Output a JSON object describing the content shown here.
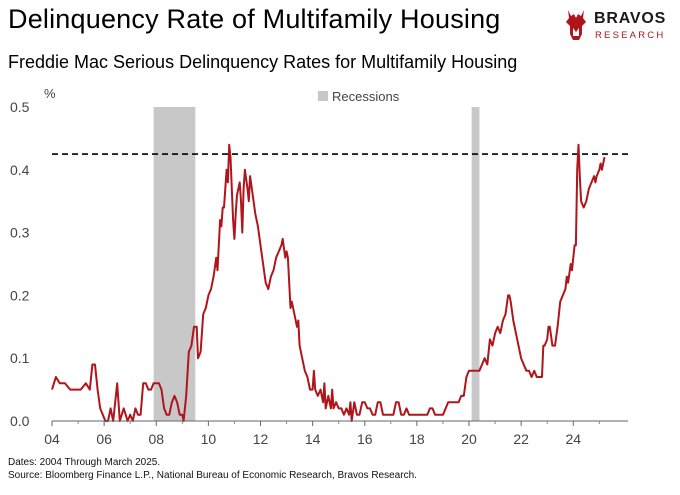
{
  "header": {
    "title": "Delinquency Rate of Multifamily Housing",
    "subtitle": "Freddie Mac Serious Delinquency Rates for Multifamily Housing"
  },
  "logo": {
    "name": "BRAVOS",
    "tagline": "RESEARCH",
    "icon": "bull-icon",
    "accent_color": "#b0151c"
  },
  "footer": {
    "dates_note": "Dates: 2004 Through March 2025.",
    "source_note": "Source: Bloomberg Finance L.P., National Bureau of Economic Research, Bravos Research."
  },
  "chart_data": {
    "type": "line",
    "title": "",
    "xlabel": "",
    "ylabel": "%",
    "xlim": [
      2004,
      2026.1
    ],
    "ylim": [
      0,
      0.5
    ],
    "x_ticks": [
      2004,
      2006,
      2008,
      2010,
      2012,
      2014,
      2016,
      2018,
      2020,
      2022,
      2024
    ],
    "x_tick_labels": [
      "04",
      "06",
      "08",
      "10",
      "12",
      "14",
      "16",
      "18",
      "20",
      "22",
      "24"
    ],
    "y_ticks": [
      0,
      0.1,
      0.2,
      0.3,
      0.4,
      0.5
    ],
    "y_tick_labels": [
      "0.0",
      "0.1",
      "0.2",
      "0.3",
      "0.4",
      "0.5"
    ],
    "grid": false,
    "legend": {
      "position": "top-center",
      "entries": [
        {
          "label": "Recessions",
          "color": "#c8c8c8"
        }
      ]
    },
    "recessions": [
      {
        "start": 2007.9,
        "end": 2009.5
      },
      {
        "start": 2020.1,
        "end": 2020.4
      }
    ],
    "reference_line": {
      "value": 0.425,
      "style": "dashed",
      "color": "#000000"
    },
    "series": [
      {
        "color": "#b0151c",
        "points": [
          [
            2004.0,
            0.05
          ],
          [
            2004.15,
            0.07
          ],
          [
            2004.3,
            0.06
          ],
          [
            2004.5,
            0.06
          ],
          [
            2004.7,
            0.05
          ],
          [
            2004.9,
            0.05
          ],
          [
            2005.1,
            0.05
          ],
          [
            2005.3,
            0.06
          ],
          [
            2005.45,
            0.05
          ],
          [
            2005.55,
            0.09
          ],
          [
            2005.65,
            0.09
          ],
          [
            2005.75,
            0.05
          ],
          [
            2005.85,
            0.02
          ],
          [
            2005.95,
            0.01
          ],
          [
            2006.05,
            0.0
          ],
          [
            2006.15,
            0.0
          ],
          [
            2006.25,
            0.02
          ],
          [
            2006.35,
            0.0
          ],
          [
            2006.5,
            0.06
          ],
          [
            2006.6,
            0.0
          ],
          [
            2006.75,
            0.02
          ],
          [
            2006.9,
            0.0
          ],
          [
            2007.0,
            0.01
          ],
          [
            2007.1,
            0.0
          ],
          [
            2007.2,
            0.02
          ],
          [
            2007.3,
            0.01
          ],
          [
            2007.4,
            0.01
          ],
          [
            2007.5,
            0.06
          ],
          [
            2007.6,
            0.06
          ],
          [
            2007.7,
            0.05
          ],
          [
            2007.8,
            0.05
          ],
          [
            2007.9,
            0.06
          ],
          [
            2008.0,
            0.06
          ],
          [
            2008.1,
            0.06
          ],
          [
            2008.2,
            0.05
          ],
          [
            2008.3,
            0.02
          ],
          [
            2008.4,
            0.01
          ],
          [
            2008.5,
            0.01
          ],
          [
            2008.6,
            0.03
          ],
          [
            2008.7,
            0.04
          ],
          [
            2008.8,
            0.03
          ],
          [
            2008.9,
            0.01
          ],
          [
            2009.0,
            0.01
          ],
          [
            2009.05,
            0.0
          ],
          [
            2009.15,
            0.04
          ],
          [
            2009.25,
            0.11
          ],
          [
            2009.35,
            0.12
          ],
          [
            2009.45,
            0.15
          ],
          [
            2009.55,
            0.15
          ],
          [
            2009.6,
            0.1
          ],
          [
            2009.7,
            0.11
          ],
          [
            2009.8,
            0.17
          ],
          [
            2009.9,
            0.18
          ],
          [
            2010.0,
            0.2
          ],
          [
            2010.1,
            0.21
          ],
          [
            2010.2,
            0.23
          ],
          [
            2010.3,
            0.26
          ],
          [
            2010.35,
            0.24
          ],
          [
            2010.4,
            0.28
          ],
          [
            2010.45,
            0.32
          ],
          [
            2010.5,
            0.31
          ],
          [
            2010.55,
            0.34
          ],
          [
            2010.6,
            0.34
          ],
          [
            2010.7,
            0.4
          ],
          [
            2010.75,
            0.38
          ],
          [
            2010.8,
            0.44
          ],
          [
            2010.85,
            0.42
          ],
          [
            2010.9,
            0.37
          ],
          [
            2010.95,
            0.32
          ],
          [
            2011.0,
            0.29
          ],
          [
            2011.05,
            0.33
          ],
          [
            2011.1,
            0.36
          ],
          [
            2011.2,
            0.38
          ],
          [
            2011.25,
            0.35
          ],
          [
            2011.3,
            0.3
          ],
          [
            2011.35,
            0.37
          ],
          [
            2011.4,
            0.4
          ],
          [
            2011.5,
            0.37
          ],
          [
            2011.55,
            0.35
          ],
          [
            2011.6,
            0.39
          ],
          [
            2011.7,
            0.36
          ],
          [
            2011.8,
            0.33
          ],
          [
            2011.9,
            0.31
          ],
          [
            2012.0,
            0.28
          ],
          [
            2012.1,
            0.25
          ],
          [
            2012.2,
            0.22
          ],
          [
            2012.3,
            0.21
          ],
          [
            2012.4,
            0.23
          ],
          [
            2012.5,
            0.24
          ],
          [
            2012.6,
            0.26
          ],
          [
            2012.7,
            0.27
          ],
          [
            2012.8,
            0.28
          ],
          [
            2012.85,
            0.29
          ],
          [
            2012.95,
            0.26
          ],
          [
            2013.0,
            0.27
          ],
          [
            2013.05,
            0.26
          ],
          [
            2013.1,
            0.22
          ],
          [
            2013.15,
            0.18
          ],
          [
            2013.2,
            0.19
          ],
          [
            2013.3,
            0.17
          ],
          [
            2013.4,
            0.15
          ],
          [
            2013.45,
            0.16
          ],
          [
            2013.5,
            0.12
          ],
          [
            2013.6,
            0.1
          ],
          [
            2013.7,
            0.08
          ],
          [
            2013.8,
            0.07
          ],
          [
            2013.9,
            0.05
          ],
          [
            2014.0,
            0.05
          ],
          [
            2014.05,
            0.08
          ],
          [
            2014.1,
            0.05
          ],
          [
            2014.2,
            0.04
          ],
          [
            2014.3,
            0.05
          ],
          [
            2014.4,
            0.03
          ],
          [
            2014.45,
            0.06
          ],
          [
            2014.5,
            0.02
          ],
          [
            2014.6,
            0.04
          ],
          [
            2014.7,
            0.02
          ],
          [
            2014.75,
            0.05
          ],
          [
            2014.8,
            0.02
          ],
          [
            2014.9,
            0.03
          ],
          [
            2015.0,
            0.02
          ],
          [
            2015.1,
            0.02
          ],
          [
            2015.2,
            0.01
          ],
          [
            2015.3,
            0.02
          ],
          [
            2015.4,
            0.01
          ],
          [
            2015.45,
            0.03
          ],
          [
            2015.5,
            0.0
          ],
          [
            2015.6,
            0.03
          ],
          [
            2015.7,
            0.01
          ],
          [
            2015.8,
            0.01
          ],
          [
            2015.9,
            0.03
          ],
          [
            2016.0,
            0.03
          ],
          [
            2016.1,
            0.02
          ],
          [
            2016.2,
            0.02
          ],
          [
            2016.3,
            0.01
          ],
          [
            2016.4,
            0.01
          ],
          [
            2016.5,
            0.03
          ],
          [
            2016.6,
            0.03
          ],
          [
            2016.7,
            0.01
          ],
          [
            2016.8,
            0.01
          ],
          [
            2016.9,
            0.01
          ],
          [
            2017.0,
            0.01
          ],
          [
            2017.1,
            0.01
          ],
          [
            2017.2,
            0.03
          ],
          [
            2017.3,
            0.03
          ],
          [
            2017.4,
            0.01
          ],
          [
            2017.5,
            0.01
          ],
          [
            2017.6,
            0.02
          ],
          [
            2017.7,
            0.01
          ],
          [
            2017.8,
            0.01
          ],
          [
            2017.9,
            0.01
          ],
          [
            2018.0,
            0.01
          ],
          [
            2018.2,
            0.01
          ],
          [
            2018.4,
            0.01
          ],
          [
            2018.5,
            0.02
          ],
          [
            2018.6,
            0.02
          ],
          [
            2018.7,
            0.01
          ],
          [
            2018.8,
            0.01
          ],
          [
            2019.0,
            0.01
          ],
          [
            2019.2,
            0.03
          ],
          [
            2019.4,
            0.03
          ],
          [
            2019.6,
            0.03
          ],
          [
            2019.7,
            0.04
          ],
          [
            2019.8,
            0.04
          ],
          [
            2019.9,
            0.07
          ],
          [
            2020.0,
            0.08
          ],
          [
            2020.2,
            0.08
          ],
          [
            2020.4,
            0.08
          ],
          [
            2020.5,
            0.09
          ],
          [
            2020.6,
            0.1
          ],
          [
            2020.7,
            0.09
          ],
          [
            2020.8,
            0.13
          ],
          [
            2020.9,
            0.12
          ],
          [
            2021.0,
            0.14
          ],
          [
            2021.1,
            0.15
          ],
          [
            2021.2,
            0.14
          ],
          [
            2021.3,
            0.16
          ],
          [
            2021.4,
            0.17
          ],
          [
            2021.5,
            0.2
          ],
          [
            2021.55,
            0.2
          ],
          [
            2021.6,
            0.19
          ],
          [
            2021.7,
            0.16
          ],
          [
            2021.8,
            0.14
          ],
          [
            2021.9,
            0.12
          ],
          [
            2022.0,
            0.1
          ],
          [
            2022.1,
            0.09
          ],
          [
            2022.2,
            0.08
          ],
          [
            2022.3,
            0.08
          ],
          [
            2022.4,
            0.07
          ],
          [
            2022.5,
            0.08
          ],
          [
            2022.6,
            0.07
          ],
          [
            2022.7,
            0.07
          ],
          [
            2022.8,
            0.07
          ],
          [
            2022.85,
            0.12
          ],
          [
            2022.9,
            0.12
          ],
          [
            2023.0,
            0.13
          ],
          [
            2023.05,
            0.15
          ],
          [
            2023.1,
            0.15
          ],
          [
            2023.2,
            0.12
          ],
          [
            2023.3,
            0.12
          ],
          [
            2023.4,
            0.15
          ],
          [
            2023.5,
            0.19
          ],
          [
            2023.6,
            0.2
          ],
          [
            2023.7,
            0.21
          ],
          [
            2023.75,
            0.23
          ],
          [
            2023.8,
            0.22
          ],
          [
            2023.9,
            0.25
          ],
          [
            2023.95,
            0.24
          ],
          [
            2024.0,
            0.26
          ],
          [
            2024.05,
            0.28
          ],
          [
            2024.1,
            0.28
          ],
          [
            2024.15,
            0.4
          ],
          [
            2024.2,
            0.44
          ],
          [
            2024.25,
            0.39
          ],
          [
            2024.3,
            0.35
          ],
          [
            2024.4,
            0.34
          ],
          [
            2024.5,
            0.35
          ],
          [
            2024.6,
            0.37
          ],
          [
            2024.7,
            0.38
          ],
          [
            2024.8,
            0.39
          ],
          [
            2024.85,
            0.38
          ],
          [
            2024.9,
            0.39
          ],
          [
            2025.0,
            0.4
          ],
          [
            2025.05,
            0.41
          ],
          [
            2025.1,
            0.4
          ],
          [
            2025.2,
            0.42
          ]
        ]
      }
    ]
  }
}
